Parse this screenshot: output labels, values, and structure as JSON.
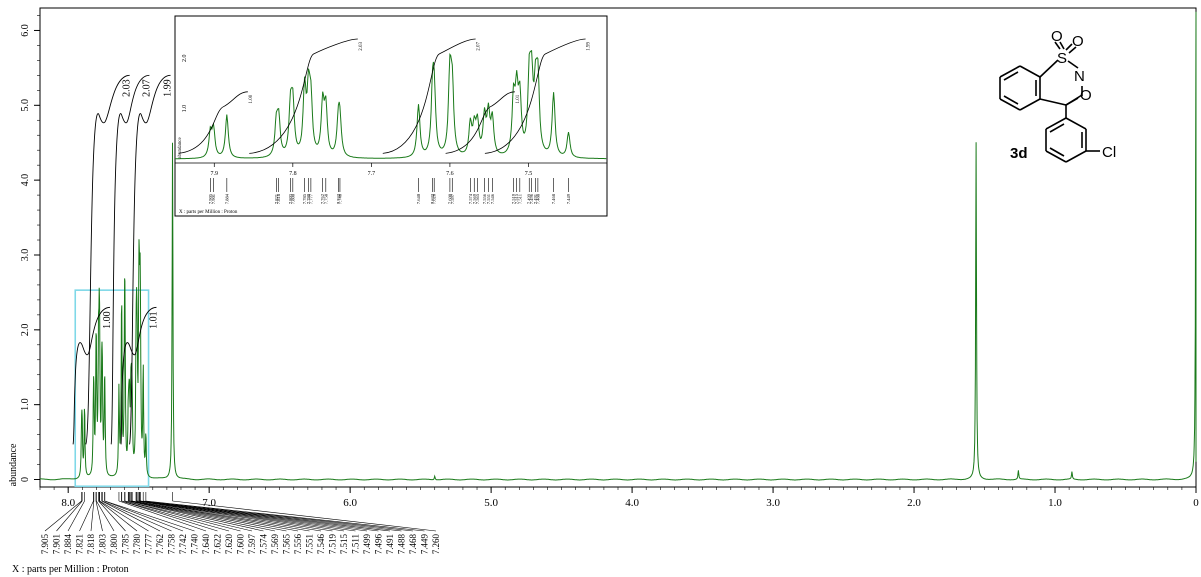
{
  "colors": {
    "trace": "#1a7a1a",
    "zoom_box": "#7fd8e8",
    "axis": "#000000",
    "background": "#ffffff"
  },
  "chart_data": [
    {
      "type": "line",
      "xlabel": "X : parts per Million : Proton",
      "ylabel": "abundance",
      "xlim": [
        8.2,
        0.0
      ],
      "ylim": [
        -0.1,
        6.3
      ],
      "x_reversed": true,
      "x_ticks": [
        "8.0",
        "7.0",
        "6.0",
        "5.0",
        "4.0",
        "3.0",
        "2.0",
        "1.0",
        "0"
      ],
      "y_ticks": [
        "0",
        "1.0",
        "2.0",
        "3.0",
        "4.0",
        "5.0",
        "6.0"
      ],
      "series": [
        {
          "peaks": [
            {
              "x": 7.905,
              "y": 0.55
            },
            {
              "x": 7.901,
              "y": 0.62
            },
            {
              "x": 7.884,
              "y": 0.95
            },
            {
              "x": 7.821,
              "y": 0.7
            },
            {
              "x": 7.818,
              "y": 0.8
            },
            {
              "x": 7.803,
              "y": 1.05
            },
            {
              "x": 7.8,
              "y": 1.1
            },
            {
              "x": 7.785,
              "y": 1.45
            },
            {
              "x": 7.78,
              "y": 1.3
            },
            {
              "x": 7.777,
              "y": 1.1
            },
            {
              "x": 7.762,
              "y": 1.15
            },
            {
              "x": 7.758,
              "y": 1.05
            },
            {
              "x": 7.742,
              "y": 0.75
            },
            {
              "x": 7.74,
              "y": 0.7
            },
            {
              "x": 7.64,
              "y": 1.15
            },
            {
              "x": 7.622,
              "y": 1.3
            },
            {
              "x": 7.62,
              "y": 1.2
            },
            {
              "x": 7.6,
              "y": 1.75
            },
            {
              "x": 7.597,
              "y": 1.4
            },
            {
              "x": 7.574,
              "y": 0.7
            },
            {
              "x": 7.569,
              "y": 0.6
            },
            {
              "x": 7.565,
              "y": 0.7
            },
            {
              "x": 7.556,
              "y": 0.85
            },
            {
              "x": 7.551,
              "y": 0.9
            },
            {
              "x": 7.546,
              "y": 0.8
            },
            {
              "x": 7.519,
              "y": 1.2
            },
            {
              "x": 7.515,
              "y": 1.3
            },
            {
              "x": 7.511,
              "y": 1.2
            },
            {
              "x": 7.499,
              "y": 1.55
            },
            {
              "x": 7.496,
              "y": 1.45
            },
            {
              "x": 7.491,
              "y": 1.25
            },
            {
              "x": 7.488,
              "y": 1.55
            },
            {
              "x": 7.468,
              "y": 1.4
            },
            {
              "x": 7.449,
              "y": 0.55
            },
            {
              "x": 7.26,
              "y": 4.5
            },
            {
              "x": 5.4,
              "y": 0.05
            },
            {
              "x": 1.56,
              "y": 4.5
            },
            {
              "x": 1.26,
              "y": 0.12
            },
            {
              "x": 0.88,
              "y": 0.1
            },
            {
              "x": 0.0,
              "y": 6.25
            }
          ]
        }
      ],
      "integrals": [
        {
          "label": "1.00",
          "from": 7.93,
          "to": 7.86
        },
        {
          "label": "2.03",
          "from": 7.84,
          "to": 7.72
        },
        {
          "label": "2.07",
          "from": 7.66,
          "to": 7.58
        },
        {
          "label": "1.01",
          "from": 7.59,
          "to": 7.53
        },
        {
          "label": "1.99",
          "from": 7.53,
          "to": 7.43
        }
      ],
      "peak_labels": [
        "7.905",
        "7.901",
        "7.884",
        "7.821",
        "7.818",
        "7.803",
        "7.800",
        "7.785",
        "7.780",
        "7.777",
        "7.762",
        "7.758",
        "7.742",
        "7.740",
        "7.640",
        "7.622",
        "7.620",
        "7.600",
        "7.597",
        "7.574",
        "7.569",
        "7.565",
        "7.556",
        "7.551",
        "7.546",
        "7.519",
        "7.515",
        "7.511",
        "7.499",
        "7.496",
        "7.491",
        "7.488",
        "7.468",
        "7.449",
        "7.260"
      ]
    },
    {
      "type": "line",
      "xlabel": "X : parts per Million : Proton",
      "ylabel": "abundance",
      "xlim": [
        7.95,
        7.4
      ],
      "x_ticks": [
        "7.9",
        "7.8",
        "7.7",
        "7.6",
        "7.5"
      ],
      "y_ticks": [
        "1.0",
        "2.0"
      ],
      "integrals": [
        {
          "label": "1.00",
          "from": 7.92,
          "to": 7.87
        },
        {
          "label": "2.03",
          "from": 7.83,
          "to": 7.73
        },
        {
          "label": "2.07",
          "from": 7.66,
          "to": 7.58
        },
        {
          "label": "1.01",
          "from": 7.58,
          "to": 7.53
        },
        {
          "label": "1.99",
          "from": 7.53,
          "to": 7.44
        }
      ],
      "peak_labels": [
        "7.905",
        "7.901",
        "7.884",
        "7.821",
        "7.818",
        "7.803",
        "7.800",
        "7.785",
        "7.780",
        "7.777",
        "7.762",
        "7.758",
        "7.742",
        "7.740",
        "7.640",
        "7.622",
        "7.620",
        "7.600",
        "7.597",
        "7.574",
        "7.569",
        "7.565",
        "7.556",
        "7.551",
        "7.546",
        "7.519",
        "7.515",
        "7.511",
        "7.499",
        "7.496",
        "7.491",
        "7.488",
        "7.468",
        "7.449"
      ]
    }
  ],
  "structure": {
    "compound_label": "3d",
    "atoms": [
      "O",
      "O",
      "S",
      "N",
      "O",
      "Cl"
    ]
  }
}
